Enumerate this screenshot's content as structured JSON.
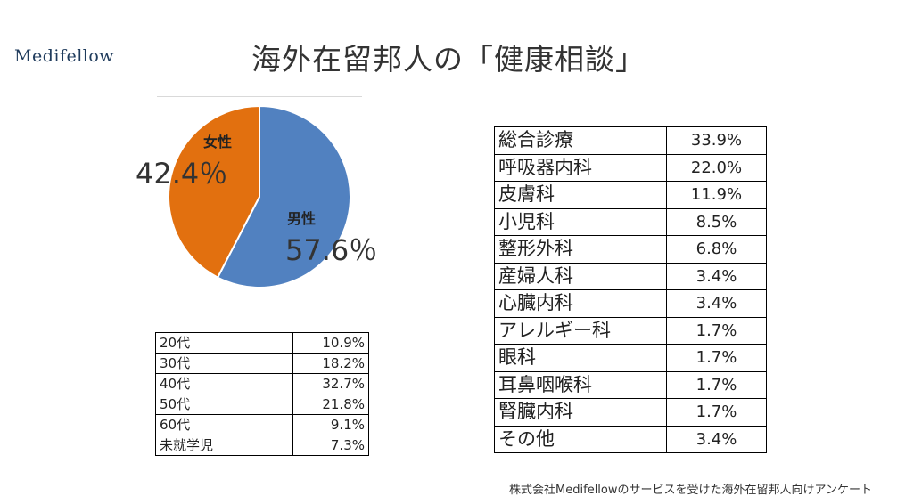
{
  "logo": "Medifellow",
  "title": "海外在留邦人の「健康相談」",
  "source": "株式会社Medifellowのサービスを受けた海外在留邦人向けアンケート",
  "colors": {
    "male": "#5181c0",
    "female": "#e2700f"
  },
  "chart_data": [
    {
      "type": "pie",
      "title": "",
      "slices": [
        {
          "label": "男性",
          "value": 57.6,
          "display": "57.6％"
        },
        {
          "label": "女性",
          "value": 42.4,
          "display": "42.4％"
        }
      ]
    },
    {
      "type": "table",
      "rows": [
        {
          "label": "20代",
          "value": "10.9%"
        },
        {
          "label": "30代",
          "value": "18.2%"
        },
        {
          "label": "40代",
          "value": "32.7%"
        },
        {
          "label": "50代",
          "value": "21.8%"
        },
        {
          "label": "60代",
          "value": "9.1%"
        },
        {
          "label": "未就学児",
          "value": "7.3%"
        }
      ]
    },
    {
      "type": "table",
      "rows": [
        {
          "label": "総合診療",
          "value": "33.9%"
        },
        {
          "label": "呼吸器内科",
          "value": "22.0%"
        },
        {
          "label": "皮膚科",
          "value": "11.9%"
        },
        {
          "label": "小児科",
          "value": "8.5%"
        },
        {
          "label": "整形外科",
          "value": "6.8%"
        },
        {
          "label": "産婦人科",
          "value": "3.4%"
        },
        {
          "label": "心臓内科",
          "value": "3.4%"
        },
        {
          "label": "アレルギー科",
          "value": "1.7%"
        },
        {
          "label": "眼科",
          "value": "1.7%"
        },
        {
          "label": "耳鼻咽喉科",
          "value": "1.7%"
        },
        {
          "label": "腎臓内科",
          "value": "1.7%"
        },
        {
          "label": "その他",
          "value": "3.4%"
        }
      ]
    }
  ]
}
